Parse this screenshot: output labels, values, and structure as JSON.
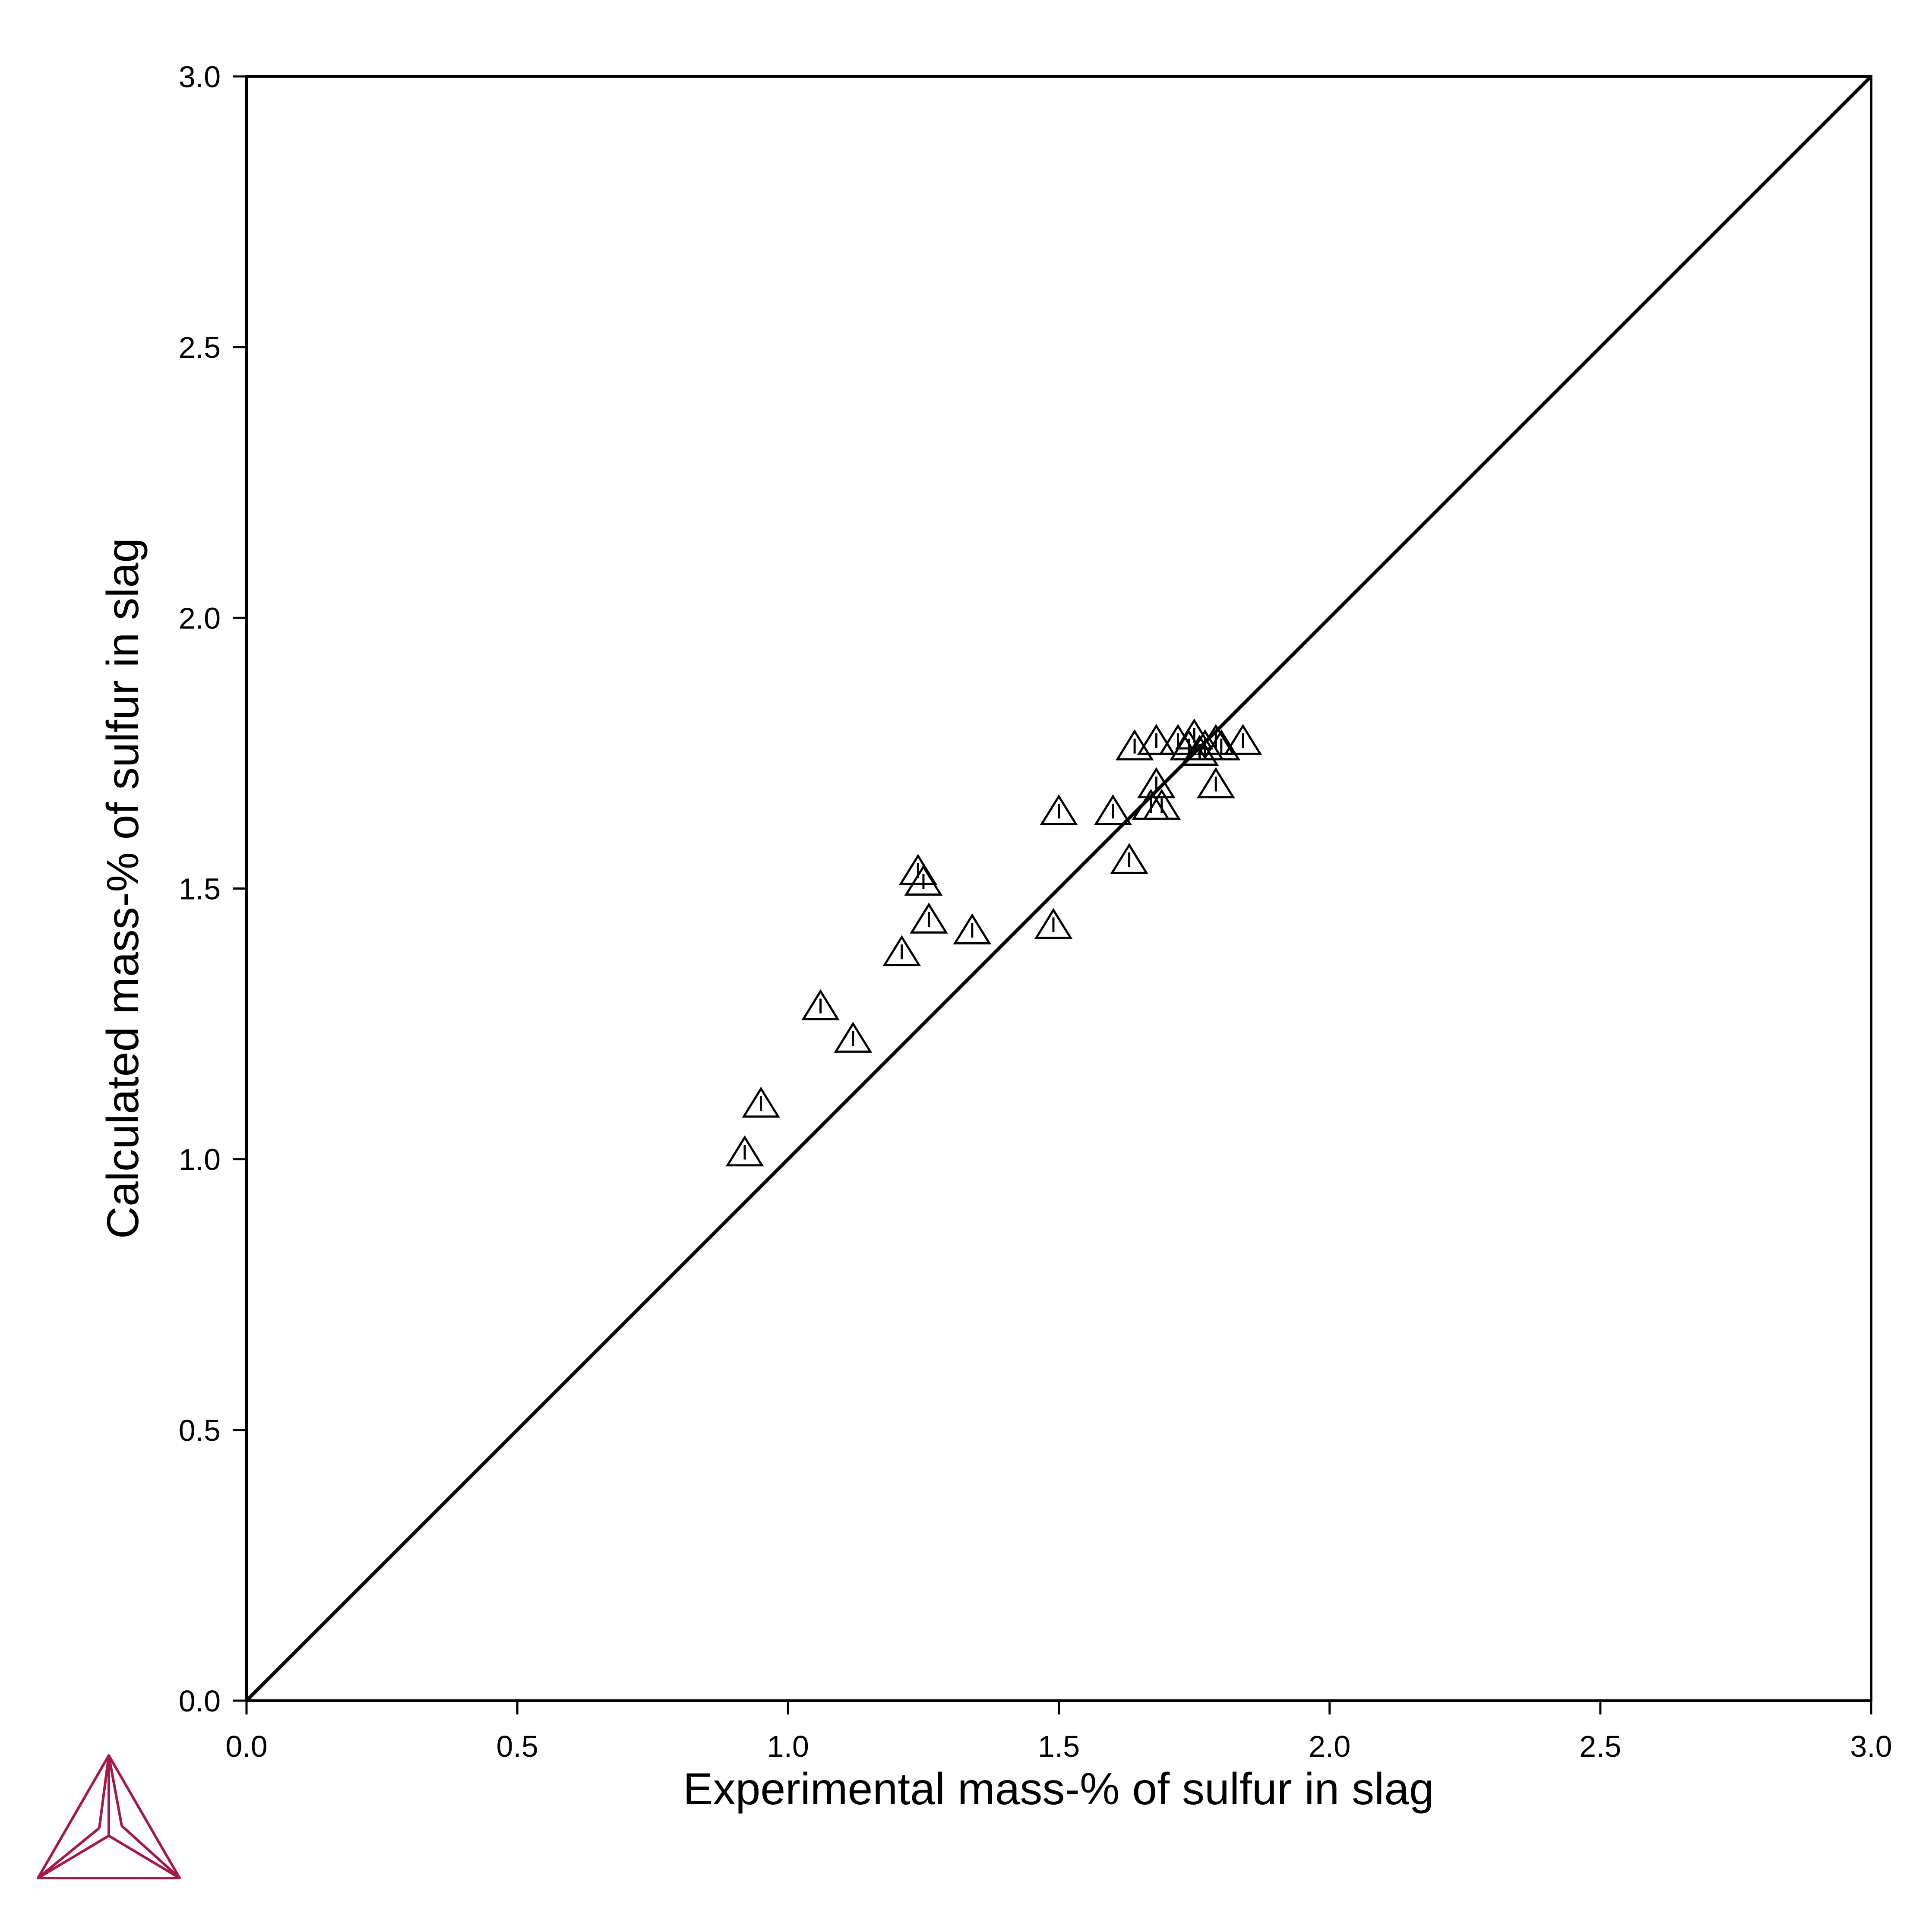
{
  "chart_data": {
    "type": "scatter",
    "title": "",
    "xlabel": "Experimental mass-% of sulfur in slag",
    "ylabel": "Calculated mass-% of sulfur in slag",
    "xlim": [
      0.0,
      3.0
    ],
    "ylim": [
      0.0,
      3.0
    ],
    "x_ticks": [
      "0.0",
      "0.5",
      "1.0",
      "1.5",
      "2.0",
      "2.5",
      "3.0"
    ],
    "y_ticks": [
      "0.0",
      "0.5",
      "1.0",
      "1.5",
      "2.0",
      "2.5",
      "3.0"
    ],
    "grid": false,
    "legend": "none",
    "reference_line": {
      "type": "y=x",
      "from": [
        0.0,
        0.0
      ],
      "to": [
        3.0,
        3.0
      ]
    },
    "marker": "triangle-up-open",
    "series": [
      {
        "x": [
          0.92,
          0.95,
          1.06,
          1.12,
          1.21,
          1.24,
          1.25,
          1.26,
          1.34,
          1.49,
          1.5,
          1.6,
          1.63,
          1.64,
          1.67,
          1.68,
          1.68,
          1.69,
          1.72,
          1.74,
          1.75,
          1.76,
          1.77,
          1.79,
          1.79,
          1.8,
          1.84
        ],
        "y": [
          1.01,
          1.1,
          1.28,
          1.22,
          1.38,
          1.53,
          1.51,
          1.44,
          1.42,
          1.43,
          1.64,
          1.64,
          1.55,
          1.76,
          1.65,
          1.77,
          1.69,
          1.65,
          1.77,
          1.76,
          1.78,
          1.75,
          1.76,
          1.69,
          1.77,
          1.76,
          1.77
        ]
      }
    ],
    "colors": {
      "axis": "#000000",
      "marker": "#000000",
      "logo": "#a6174a"
    }
  },
  "logo": {
    "name": "thermo-calc-logo"
  }
}
